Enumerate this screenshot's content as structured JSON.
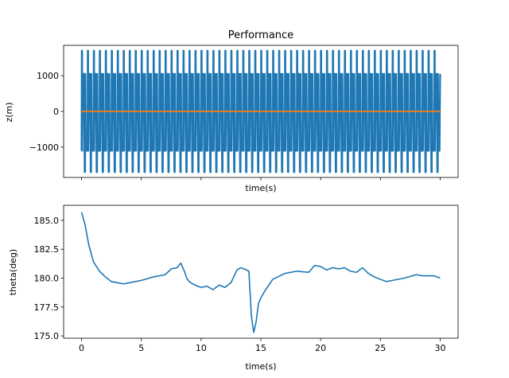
{
  "chart_data": [
    {
      "type": "line",
      "title": "Performance",
      "xlabel": "time(s)",
      "ylabel": "z(m)",
      "xlim": [
        -1.5,
        31.5
      ],
      "ylim": [
        -1850,
        1850
      ],
      "yticks": [
        -1000,
        0,
        1000
      ],
      "ytick_labels": [
        "−1000",
        "0",
        "1000"
      ],
      "xticks": [
        0,
        5,
        10,
        15,
        20,
        25,
        30
      ],
      "show_xtick_labels": false,
      "grid": false,
      "series": [
        {
          "color": "#1f77b4",
          "pattern": "oscillation",
          "x_start": 0,
          "x_end": 30,
          "cycles": 60,
          "peak_high": 1700,
          "peak_low": -1700,
          "inner_high": 1050,
          "inner_low": -1100
        },
        {
          "color": "#ff7f0e",
          "pattern": "flat",
          "x": [
            0,
            30
          ],
          "y": [
            0,
            0
          ]
        }
      ]
    },
    {
      "type": "line",
      "title": "",
      "xlabel": "time(s)",
      "ylabel": "theta(deg)",
      "xlim": [
        -1.5,
        31.5
      ],
      "ylim": [
        174.8,
        186.3
      ],
      "yticks": [
        175.0,
        177.5,
        180.0,
        182.5,
        185.0
      ],
      "ytick_labels": [
        "175.0",
        "177.5",
        "180.0",
        "182.5",
        "185.0"
      ],
      "xticks": [
        0,
        5,
        10,
        15,
        20,
        25,
        30
      ],
      "xtick_labels": [
        "0",
        "5",
        "10",
        "15",
        "20",
        "25",
        "30"
      ],
      "grid": false,
      "series": [
        {
          "color": "#1f77b4",
          "x": [
            0,
            0.3,
            0.6,
            1.0,
            1.5,
            2.0,
            2.5,
            3.0,
            3.5,
            4.0,
            5.0,
            6.0,
            7.0,
            7.5,
            8.0,
            8.3,
            8.6,
            8.8,
            9.0,
            9.3,
            9.7,
            10.0,
            10.5,
            11.0,
            11.5,
            12.0,
            12.5,
            13.0,
            13.3,
            13.6,
            14.0,
            14.2,
            14.4,
            14.6,
            14.8,
            15.0,
            15.4,
            16.0,
            17.0,
            18.0,
            19.0,
            19.5,
            20.0,
            20.5,
            21.0,
            21.5,
            22.0,
            22.5,
            23.0,
            23.5,
            24.0,
            24.5,
            25.0,
            25.5,
            26.0,
            27.0,
            28.0,
            28.5,
            29.0,
            29.5,
            30.0
          ],
          "y": [
            185.7,
            184.6,
            182.9,
            181.4,
            180.6,
            180.1,
            179.7,
            179.6,
            179.5,
            179.6,
            179.8,
            180.1,
            180.3,
            180.8,
            180.9,
            181.3,
            180.6,
            180.0,
            179.7,
            179.5,
            179.3,
            179.2,
            179.3,
            179.0,
            179.4,
            179.2,
            179.6,
            180.7,
            180.9,
            180.8,
            180.6,
            176.8,
            175.3,
            176.2,
            177.8,
            178.3,
            179.0,
            179.9,
            180.4,
            180.6,
            180.5,
            181.1,
            181.0,
            180.7,
            180.9,
            180.8,
            180.9,
            180.6,
            180.5,
            180.9,
            180.4,
            180.1,
            179.9,
            179.7,
            179.8,
            180.0,
            180.3,
            180.2,
            180.2,
            180.2,
            180.0
          ]
        }
      ]
    }
  ]
}
